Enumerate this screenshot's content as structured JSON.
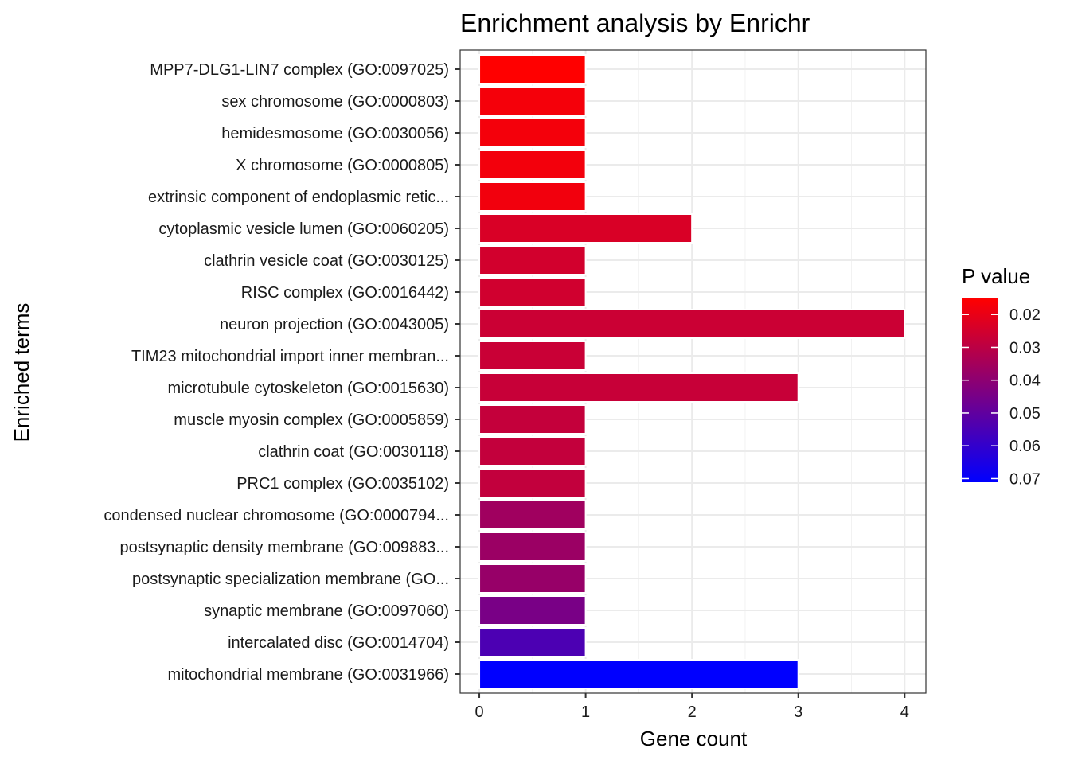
{
  "chart_data": {
    "type": "bar",
    "orientation": "horizontal",
    "title": "Enrichment analysis by Enrichr",
    "xlabel": "Gene count",
    "ylabel": "Enriched terms",
    "xlim": [
      -0.18,
      4.2
    ],
    "xticks": [
      "0",
      "1",
      "2",
      "3",
      "4"
    ],
    "grid": true,
    "legend": {
      "title": "P value",
      "placement": "right",
      "range": [
        0.0151,
        0.0711
      ],
      "ticks": [
        {
          "value": 0.02,
          "label": "0.02"
        },
        {
          "value": 0.03,
          "label": "0.03"
        },
        {
          "value": 0.04,
          "label": "0.04"
        },
        {
          "value": 0.05,
          "label": "0.05"
        },
        {
          "value": 0.06,
          "label": "0.06"
        },
        {
          "value": 0.07,
          "label": "0.07"
        }
      ],
      "low_color": "#FF0000",
      "high_color": "#0000FF"
    },
    "bars": [
      {
        "term": "MPP7-DLG1-LIN7 complex (GO:0097025)",
        "count": 1,
        "p": 0.0151
      },
      {
        "term": "sex chromosome (GO:0000803)",
        "count": 1,
        "p": 0.0173
      },
      {
        "term": "hemidesmosome (GO:0030056)",
        "count": 1,
        "p": 0.0175
      },
      {
        "term": "X chromosome (GO:0000805)",
        "count": 1,
        "p": 0.0177
      },
      {
        "term": "extrinsic component of endoplasmic retic...",
        "count": 1,
        "p": 0.018
      },
      {
        "term": "cytoplasmic vesicle lumen (GO:0060205)",
        "count": 2,
        "p": 0.0235
      },
      {
        "term": "clathrin vesicle coat (GO:0030125)",
        "count": 1,
        "p": 0.025
      },
      {
        "term": "RISC complex (GO:0016442)",
        "count": 1,
        "p": 0.0255
      },
      {
        "term": "neuron projection (GO:0043005)",
        "count": 4,
        "p": 0.0265
      },
      {
        "term": "TIM23 mitochondrial import inner membran...",
        "count": 1,
        "p": 0.027
      },
      {
        "term": "microtubule cytoskeleton (GO:0015630)",
        "count": 3,
        "p": 0.0275
      },
      {
        "term": "muscle myosin complex (GO:0005859)",
        "count": 1,
        "p": 0.028
      },
      {
        "term": "clathrin coat (GO:0030118)",
        "count": 1,
        "p": 0.0282
      },
      {
        "term": "PRC1 complex (GO:0035102)",
        "count": 1,
        "p": 0.0285
      },
      {
        "term": "condensed nuclear chromosome (GO:0000794...",
        "count": 1,
        "p": 0.036
      },
      {
        "term": "postsynaptic density membrane (GO:009883...",
        "count": 1,
        "p": 0.037
      },
      {
        "term": "postsynaptic specialization membrane (GO...",
        "count": 1,
        "p": 0.038
      },
      {
        "term": "synaptic membrane (GO:0097060)",
        "count": 1,
        "p": 0.0445
      },
      {
        "term": "intercalated disc (GO:0014704)",
        "count": 1,
        "p": 0.0545
      },
      {
        "term": "mitochondrial membrane (GO:0031966)",
        "count": 3,
        "p": 0.0711
      }
    ]
  }
}
